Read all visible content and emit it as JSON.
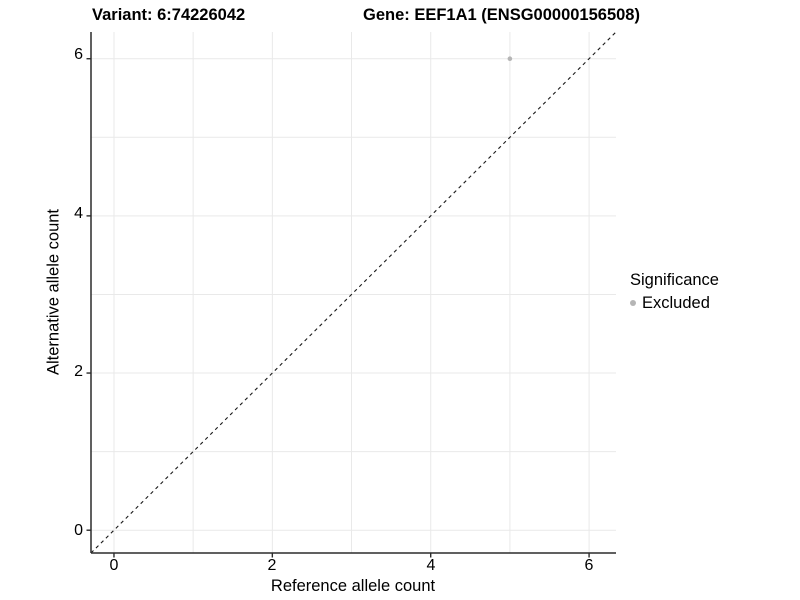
{
  "chart_data": {
    "type": "scatter",
    "title_left": "Variant: 6:74226042",
    "title_right": "Gene: EEF1A1 (ENSG00000156508)",
    "xlabel": "Reference allele count",
    "ylabel": "Alternative allele count",
    "xlim": [
      -0.29,
      6.34
    ],
    "ylim": [
      -0.29,
      6.34
    ],
    "x_ticks": [
      0,
      2,
      4,
      6
    ],
    "y_ticks": [
      0,
      2,
      4,
      6
    ],
    "x_tick_labels": [
      "0",
      "2",
      "4",
      "6"
    ],
    "y_tick_labels": [
      "0",
      "2",
      "4",
      "6"
    ],
    "grid": true,
    "grid_values": [
      0,
      1,
      2,
      3,
      4,
      5,
      6
    ],
    "identity_line": {
      "type": "abline",
      "slope": 1,
      "intercept": 0,
      "style": "dashed",
      "color": "#1a1a1a"
    },
    "series": [
      {
        "name": "Excluded",
        "color": "#b5b5b5",
        "points": [
          {
            "x": 5,
            "y": 6
          }
        ]
      }
    ],
    "legend": {
      "position": "right",
      "title": "Significance",
      "items": [
        {
          "label": "Excluded",
          "color": "#b5b5b5"
        }
      ]
    }
  },
  "colors": {
    "background": "#ffffff",
    "grid": "#e9e9e9",
    "axis": "#2b2b2b",
    "text": "#000000"
  }
}
